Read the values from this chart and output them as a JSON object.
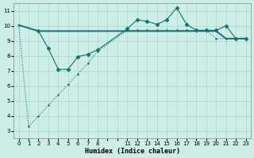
{
  "xlabel": "Humidex (Indice chaleur)",
  "bg_color": "#cceee6",
  "grid_color": "#aad8ce",
  "line_color": "#1a6e6e",
  "xlim": [
    -0.5,
    23.5
  ],
  "ylim": [
    2.5,
    11.5
  ],
  "yticks": [
    3,
    4,
    5,
    6,
    7,
    8,
    9,
    10,
    11
  ],
  "xtick_labels": [
    "0",
    "1",
    "2",
    "3",
    "4",
    "5",
    "6",
    "7",
    "8",
    "",
    "",
    "11",
    "12",
    "13",
    "14",
    "15",
    "16",
    "17",
    "18",
    "19",
    "20",
    "21",
    "22",
    "23"
  ],
  "xtick_pos": [
    0,
    1,
    2,
    3,
    4,
    5,
    6,
    7,
    8,
    9,
    10,
    11,
    12,
    13,
    14,
    15,
    16,
    17,
    18,
    19,
    20,
    21,
    22,
    23
  ],
  "line1_x": [
    0,
    1,
    2,
    3,
    4,
    5,
    6,
    7,
    8,
    11,
    12,
    13,
    14,
    15,
    16,
    17,
    18,
    19,
    20,
    21,
    22,
    23
  ],
  "line1_y": [
    10.05,
    3.3,
    4.0,
    4.7,
    5.4,
    6.1,
    6.8,
    7.5,
    8.3,
    9.7,
    9.7,
    9.7,
    9.7,
    9.7,
    9.7,
    9.7,
    9.7,
    9.7,
    9.15,
    9.15,
    9.15,
    9.15
  ],
  "line2_x": [
    0,
    2,
    11,
    12,
    13,
    14,
    15,
    16,
    17,
    18,
    19,
    20,
    21,
    22,
    23
  ],
  "line2_y": [
    10.05,
    9.65,
    9.65,
    9.65,
    9.65,
    9.65,
    9.65,
    9.65,
    9.65,
    9.65,
    9.65,
    9.65,
    9.15,
    9.15,
    9.15
  ],
  "line3_x": [
    2,
    3,
    4,
    5,
    6,
    7,
    8,
    11,
    12,
    13,
    14,
    15,
    16,
    17,
    18,
    19,
    20,
    21,
    22,
    23
  ],
  "line3_y": [
    9.65,
    8.5,
    7.1,
    7.1,
    7.95,
    8.1,
    8.4,
    9.8,
    10.4,
    10.3,
    10.1,
    10.4,
    11.2,
    10.1,
    9.7,
    9.7,
    9.7,
    10.0,
    9.15,
    9.15
  ]
}
